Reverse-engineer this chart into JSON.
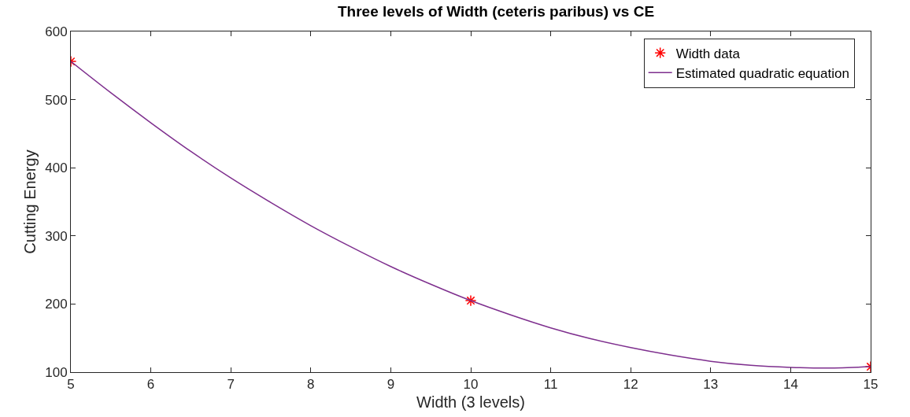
{
  "chart_data": {
    "type": "scatter",
    "title": "Three levels of Width (ceteris paribus) vs CE",
    "xlabel": "Width (3 levels)",
    "ylabel": "Cutting Energy",
    "xlim": [
      5,
      15
    ],
    "xticks": [
      5,
      6,
      7,
      8,
      9,
      10,
      11,
      12,
      13,
      14,
      15
    ],
    "ylim": [
      100,
      600
    ],
    "yticks": [
      100,
      200,
      300,
      400,
      500,
      600
    ],
    "legend": "top right",
    "series": [
      {
        "name": "Width data",
        "marker": "cross",
        "color": "#ff0000",
        "x": [
          5,
          10,
          15
        ],
        "values": [
          556,
          205,
          108
        ]
      },
      {
        "name": "Estimated quadratic equation",
        "type": "line",
        "marker": "none",
        "line_style": "solid",
        "color": "#7e2f8e",
        "x": [
          5,
          5.5,
          6,
          6.5,
          7,
          7.5,
          8,
          8.5,
          9,
          9.5,
          10,
          10.5,
          11,
          11.5,
          12,
          12.5,
          13,
          13.5,
          14,
          14.5,
          15
        ],
        "values": [
          556,
          510,
          466,
          424,
          385,
          349,
          315,
          284,
          255,
          229,
          205,
          184,
          165,
          149,
          136,
          125,
          116,
          110,
          107,
          106,
          108
        ]
      }
    ]
  }
}
